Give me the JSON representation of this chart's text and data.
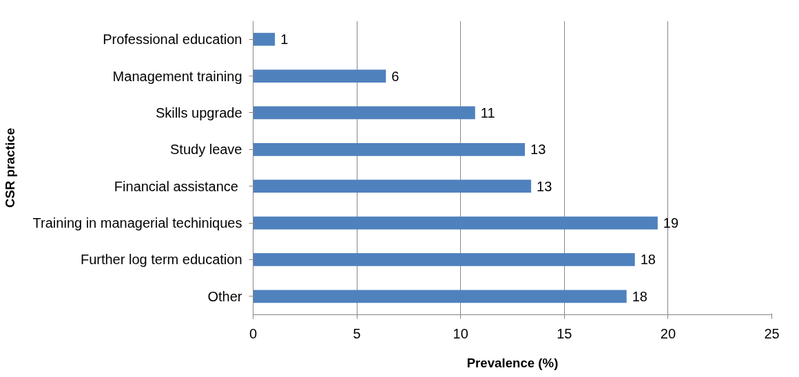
{
  "chart_data": {
    "type": "bar",
    "orientation": "horizontal",
    "xlabel": "Prevalence (%)",
    "ylabel": "CSR practice",
    "categories": [
      "Professional education",
      "Management training",
      "Skills upgrade",
      "Study leave",
      "Financial assistance ",
      "Training in managerial techiniques",
      "Further log term education",
      "Other"
    ],
    "values": [
      1.05,
      6.4,
      10.7,
      13.1,
      13.4,
      19.5,
      18.4,
      18.0
    ],
    "value_labels": [
      "1",
      "6",
      "11",
      "13",
      "13",
      "19",
      "18",
      "18"
    ],
    "color": "#4f81bd",
    "xlim": [
      0,
      25
    ],
    "xticks": [
      0,
      5,
      10,
      15,
      20,
      25
    ],
    "grid": "x"
  }
}
